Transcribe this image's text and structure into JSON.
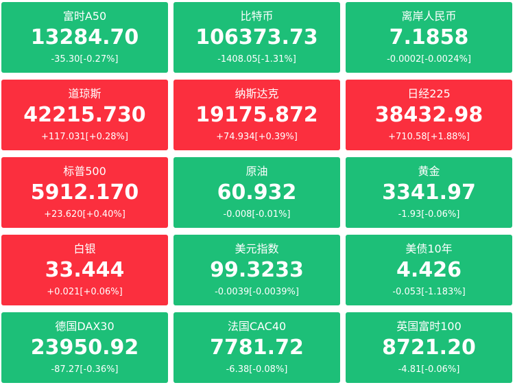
{
  "tiles": [
    {
      "name": "富时A50",
      "price": "13284.70",
      "change": "-35.30[-0.27%]",
      "color": "#1dbf78"
    },
    {
      "name": "比特币",
      "price": "106373.73",
      "change": "-1408.05[-1.31%]",
      "color": "#1dbf78"
    },
    {
      "name": "离岸人民币",
      "price": "7.1858",
      "change": "-0.0002[-0.0024%]",
      "color": "#1dbf78"
    },
    {
      "name": "道琼斯",
      "price": "42215.730",
      "change": "+117.031[+0.28%]",
      "color": "#fb2f3e"
    },
    {
      "name": "纳斯达克",
      "price": "19175.872",
      "change": "+74.934[+0.39%]",
      "color": "#fb2f3e"
    },
    {
      "name": "日经225",
      "price": "38432.98",
      "change": "+710.58[+1.88%]",
      "color": "#fb2f3e"
    },
    {
      "name": "标普500",
      "price": "5912.170",
      "change": "+23.620[+0.40%]",
      "color": "#fb2f3e"
    },
    {
      "name": "原油",
      "price": "60.932",
      "change": "-0.008[-0.01%]",
      "color": "#1dbf78"
    },
    {
      "name": "黄金",
      "price": "3341.97",
      "change": "-1.93[-0.06%]",
      "color": "#1dbf78"
    },
    {
      "name": "白银",
      "price": "33.444",
      "change": "+0.021[+0.06%]",
      "color": "#fb2f3e"
    },
    {
      "name": "美元指数",
      "price": "99.3233",
      "change": "-0.0039[-0.0039%]",
      "color": "#1dbf78"
    },
    {
      "name": "美债10年",
      "price": "4.426",
      "change": "-0.053[-1.183%]",
      "color": "#1dbf78"
    },
    {
      "name": "德国DAX30",
      "price": "23950.92",
      "change": "-87.27[-0.36%]",
      "color": "#1dbf78"
    },
    {
      "name": "法国CAC40",
      "price": "7781.72",
      "change": "-6.38[-0.08%]",
      "color": "#1dbf78"
    },
    {
      "name": "英国富时100",
      "price": "8721.20",
      "change": "-4.81[-0.06%]",
      "color": "#1dbf78"
    }
  ]
}
